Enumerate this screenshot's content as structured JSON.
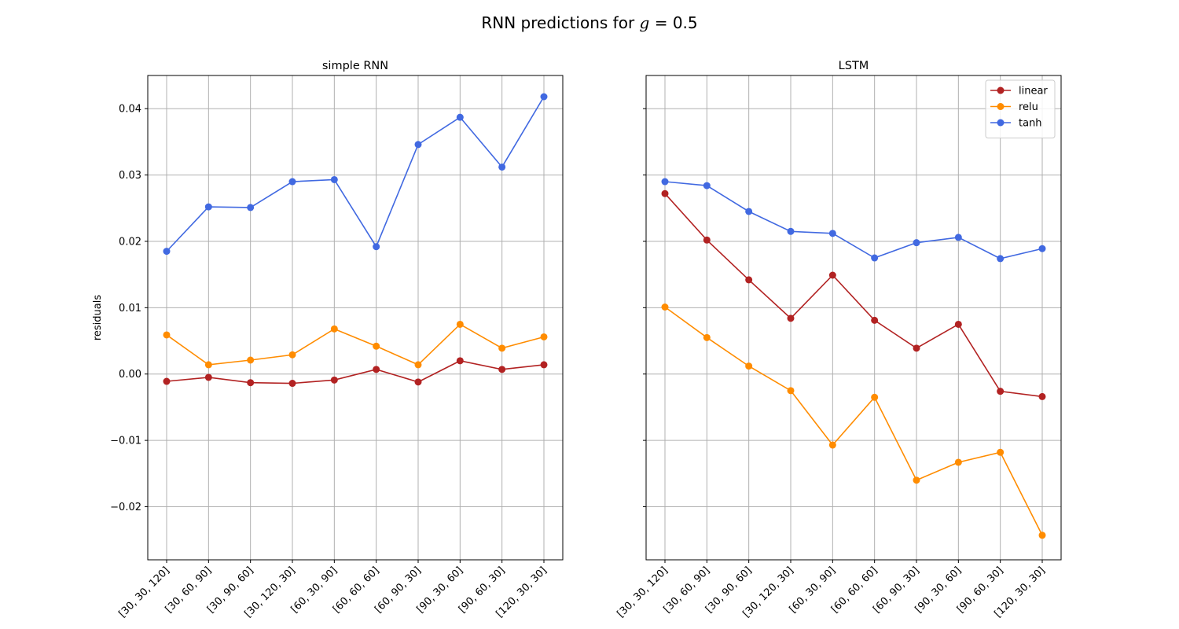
{
  "figure": {
    "title_prefix": "RNN predictions for ",
    "title_var": "g",
    "title_rest": " = 0.5"
  },
  "colors": {
    "linear": "#b22222",
    "relu": "#ff8c00",
    "tanh": "#4169e1",
    "grid": "#b0b0b0"
  },
  "chart_data": [
    {
      "type": "line",
      "title": "simple RNN",
      "ylabel": "residuals",
      "xlabel": "",
      "grid": true,
      "ylim": [
        -0.028,
        0.045
      ],
      "yticks": [
        -0.02,
        -0.01,
        0.0,
        0.01,
        0.02,
        0.03,
        0.04
      ],
      "ytick_labels": [
        "−0.02",
        "−0.01",
        "0.00",
        "0.01",
        "0.02",
        "0.03",
        "0.04"
      ],
      "categories": [
        "[30, 30, 120]",
        "[30, 60, 90]",
        "[30, 90, 60]",
        "[30, 120, 30]",
        "[60, 30, 90]",
        "[60, 60, 60]",
        "[60, 90, 30]",
        "[90, 30, 60]",
        "[90, 60, 30]",
        "[120, 30, 30]"
      ],
      "series": [
        {
          "name": "linear",
          "color": "#b22222",
          "values": [
            -0.0011,
            -0.0005,
            -0.0013,
            -0.0014,
            -0.0009,
            0.0007,
            -0.0012,
            0.002,
            0.0007,
            0.0014
          ]
        },
        {
          "name": "relu",
          "color": "#ff8c00",
          "values": [
            0.0059,
            0.0014,
            0.0021,
            0.0029,
            0.0068,
            0.0042,
            0.0014,
            0.0075,
            0.0039,
            0.0056
          ]
        },
        {
          "name": "tanh",
          "color": "#4169e1",
          "values": [
            0.0185,
            0.0252,
            0.0251,
            0.029,
            0.0293,
            0.0192,
            0.0346,
            0.0387,
            0.0312,
            0.0418
          ]
        }
      ]
    },
    {
      "type": "line",
      "title": "LSTM",
      "ylabel": "",
      "xlabel": "",
      "grid": true,
      "legend": "top-right",
      "ylim": [
        -0.028,
        0.045
      ],
      "yticks": [
        -0.02,
        -0.01,
        0.0,
        0.01,
        0.02,
        0.03,
        0.04
      ],
      "categories": [
        "[30, 30, 120]",
        "[30, 60, 90]",
        "[30, 90, 60]",
        "[30, 120, 30]",
        "[60, 30, 90]",
        "[60, 60, 60]",
        "[60, 90, 30]",
        "[90, 30, 60]",
        "[90, 60, 30]",
        "[120, 30, 30]"
      ],
      "series": [
        {
          "name": "linear",
          "color": "#b22222",
          "values": [
            0.0272,
            0.0202,
            0.0142,
            0.0084,
            0.0149,
            0.0081,
            0.0039,
            0.0075,
            -0.0026,
            -0.0034
          ]
        },
        {
          "name": "relu",
          "color": "#ff8c00",
          "values": [
            0.0101,
            0.0055,
            0.0012,
            -0.0025,
            -0.0107,
            -0.0035,
            -0.016,
            -0.0133,
            -0.0118,
            -0.0243
          ]
        },
        {
          "name": "tanh",
          "color": "#4169e1",
          "values": [
            0.029,
            0.0284,
            0.0245,
            0.0215,
            0.0212,
            0.0175,
            0.0198,
            0.0206,
            0.0174,
            0.0189
          ]
        }
      ]
    }
  ]
}
